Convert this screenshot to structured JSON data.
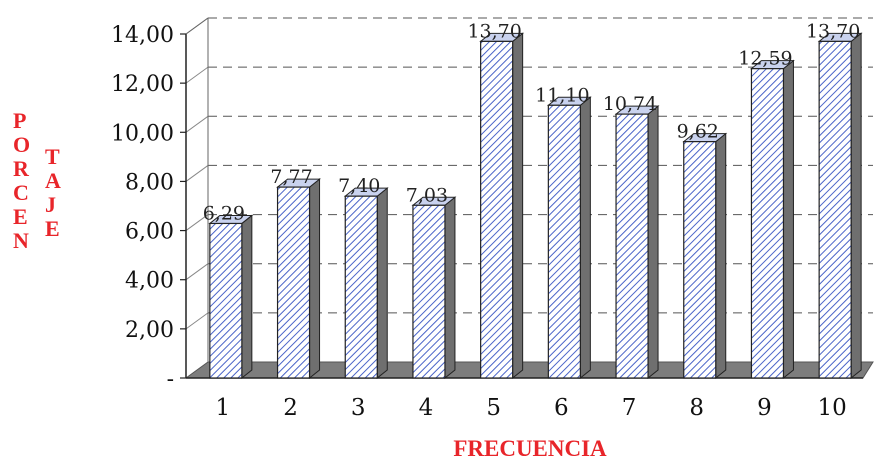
{
  "chart_data": {
    "type": "bar",
    "categories": [
      "1",
      "2",
      "3",
      "4",
      "5",
      "6",
      "7",
      "8",
      "9",
      "10"
    ],
    "values": [
      6.29,
      7.77,
      7.4,
      7.03,
      13.7,
      11.1,
      10.74,
      9.62,
      12.59,
      13.7
    ],
    "data_labels": [
      "6,29",
      "7,77",
      "7,40",
      "7,03",
      "13,70",
      "11,10",
      "10,74",
      "9,62",
      "12,59",
      "13,70"
    ],
    "yticks": [
      0,
      2,
      4,
      6,
      8,
      10,
      12,
      14
    ],
    "ytick_labels": [
      "-",
      "2,00",
      "4,00",
      "6,00",
      "8,00",
      "10,00",
      "12,00",
      "14,00"
    ],
    "ylim": [
      0,
      14
    ],
    "xlabel": "FRECUENCIA",
    "ylabel_col1": [
      "P",
      "O",
      "R",
      "C",
      "E",
      "N"
    ],
    "ylabel_col2": [
      "T",
      "A",
      "J",
      "E"
    ],
    "grid": true,
    "style": "3d-bar",
    "bar_fill": "hatched-blue",
    "label_color": "#e8252a"
  }
}
